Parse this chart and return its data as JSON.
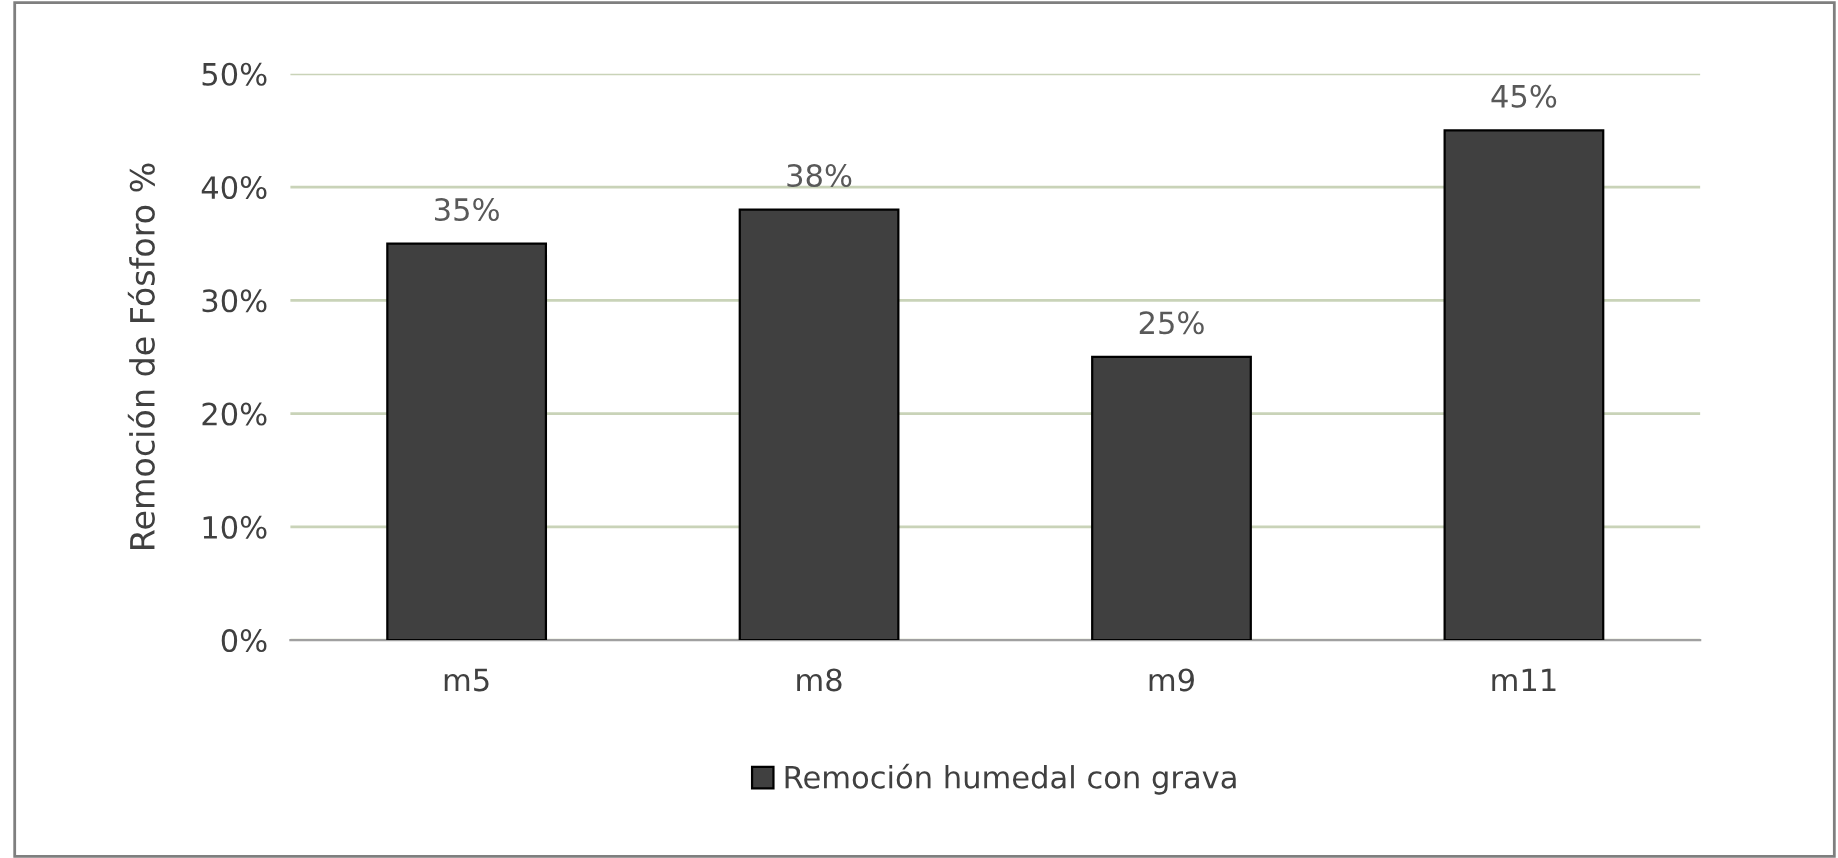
{
  "chart_data": {
    "type": "bar",
    "ylabel": "Remoción de Fósforo %",
    "categories": [
      "m5",
      "m8",
      "m9",
      "m11"
    ],
    "series": [
      {
        "name": "Remoción humedal con grava",
        "color": "#404040",
        "values": [
          35,
          38,
          25,
          45
        ],
        "value_labels": [
          "35%",
          "38%",
          "25%",
          "45%"
        ]
      }
    ],
    "ylim": [
      0,
      50
    ],
    "yticks": [
      {
        "value": 0,
        "label": "0%"
      },
      {
        "value": 10,
        "label": "10%"
      },
      {
        "value": 20,
        "label": "20%"
      },
      {
        "value": 30,
        "label": "30%"
      },
      {
        "value": 40,
        "label": "40%"
      },
      {
        "value": 50,
        "label": "50%"
      }
    ],
    "grid": "y",
    "legend": "bottom"
  }
}
